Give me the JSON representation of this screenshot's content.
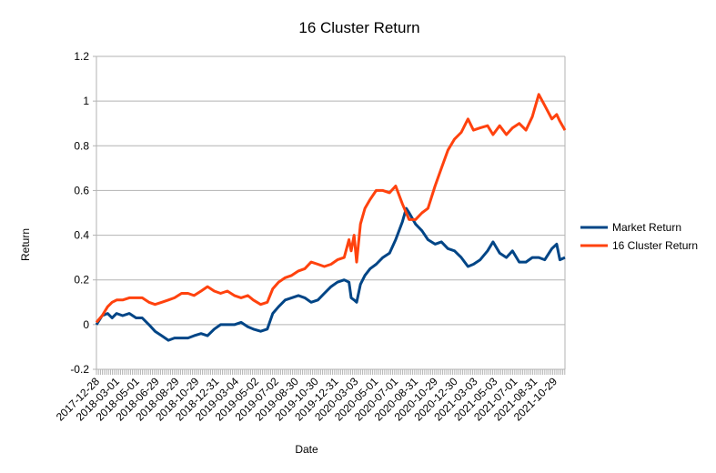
{
  "chart_data": {
    "type": "line",
    "title": "16 Cluster Return",
    "xlabel": "Date",
    "ylabel": "Return",
    "ylim": [
      -0.2,
      1.2
    ],
    "yticks": [
      -0.2,
      0,
      0.2,
      0.4,
      0.6,
      0.8,
      1,
      1.2
    ],
    "ytick_labels": [
      "-0.2",
      "0",
      "0.2",
      "0.4",
      "0.6",
      "0.8",
      "1",
      "1.2"
    ],
    "xlim": [
      "2017-12-28",
      "2021-12-31"
    ],
    "xtick_labels": [
      "2017-12-28",
      "2018-03-01",
      "2018-05-01",
      "2018-06-29",
      "2018-08-29",
      "2018-10-29",
      "2018-12-31",
      "2019-03-04",
      "2019-05-02",
      "2019-07-02",
      "2019-08-30",
      "2019-10-30",
      "2019-12-31",
      "2020-03-03",
      "2020-05-01",
      "2020-07-01",
      "2020-08-31",
      "2020-10-29",
      "2020-12-30",
      "2021-03-03",
      "2021-05-03",
      "2021-07-01",
      "2021-08-31",
      "2021-10-29"
    ],
    "grid": "horizontal",
    "legend_position": "right",
    "series": [
      {
        "name": "Market Return",
        "color": "#004586",
        "points": [
          [
            "2017-12-28",
            0.0
          ],
          [
            "2018-01-15",
            0.04
          ],
          [
            "2018-02-01",
            0.05
          ],
          [
            "2018-02-15",
            0.03
          ],
          [
            "2018-03-01",
            0.05
          ],
          [
            "2018-03-20",
            0.04
          ],
          [
            "2018-04-10",
            0.05
          ],
          [
            "2018-05-01",
            0.03
          ],
          [
            "2018-05-20",
            0.03
          ],
          [
            "2018-06-10",
            0.0
          ],
          [
            "2018-06-29",
            -0.03
          ],
          [
            "2018-07-20",
            -0.05
          ],
          [
            "2018-08-10",
            -0.07
          ],
          [
            "2018-08-29",
            -0.06
          ],
          [
            "2018-09-20",
            -0.06
          ],
          [
            "2018-10-10",
            -0.06
          ],
          [
            "2018-10-29",
            -0.05
          ],
          [
            "2018-11-20",
            -0.04
          ],
          [
            "2018-12-10",
            -0.05
          ],
          [
            "2018-12-31",
            -0.02
          ],
          [
            "2019-01-20",
            0.0
          ],
          [
            "2019-02-10",
            0.0
          ],
          [
            "2019-03-04",
            0.0
          ],
          [
            "2019-03-25",
            0.01
          ],
          [
            "2019-04-15",
            -0.01
          ],
          [
            "2019-05-02",
            -0.02
          ],
          [
            "2019-05-25",
            -0.03
          ],
          [
            "2019-06-15",
            -0.02
          ],
          [
            "2019-07-02",
            0.05
          ],
          [
            "2019-07-20",
            0.08
          ],
          [
            "2019-08-10",
            0.11
          ],
          [
            "2019-08-30",
            0.12
          ],
          [
            "2019-09-20",
            0.13
          ],
          [
            "2019-10-10",
            0.12
          ],
          [
            "2019-10-30",
            0.1
          ],
          [
            "2019-11-20",
            0.11
          ],
          [
            "2019-12-10",
            0.14
          ],
          [
            "2019-12-31",
            0.17
          ],
          [
            "2020-01-20",
            0.19
          ],
          [
            "2020-02-10",
            0.2
          ],
          [
            "2020-02-25",
            0.19
          ],
          [
            "2020-03-03",
            0.12
          ],
          [
            "2020-03-12",
            0.11
          ],
          [
            "2020-03-20",
            0.1
          ],
          [
            "2020-04-01",
            0.18
          ],
          [
            "2020-04-15",
            0.22
          ],
          [
            "2020-05-01",
            0.25
          ],
          [
            "2020-05-20",
            0.27
          ],
          [
            "2020-06-10",
            0.3
          ],
          [
            "2020-07-01",
            0.32
          ],
          [
            "2020-07-20",
            0.38
          ],
          [
            "2020-08-10",
            0.46
          ],
          [
            "2020-08-22",
            0.52
          ],
          [
            "2020-08-31",
            0.5
          ],
          [
            "2020-09-20",
            0.45
          ],
          [
            "2020-10-10",
            0.42
          ],
          [
            "2020-10-29",
            0.38
          ],
          [
            "2020-11-20",
            0.36
          ],
          [
            "2020-12-10",
            0.37
          ],
          [
            "2020-12-30",
            0.34
          ],
          [
            "2021-01-20",
            0.33
          ],
          [
            "2021-02-10",
            0.3
          ],
          [
            "2021-03-03",
            0.26
          ],
          [
            "2021-03-20",
            0.27
          ],
          [
            "2021-04-10",
            0.29
          ],
          [
            "2021-05-03",
            0.33
          ],
          [
            "2021-05-20",
            0.37
          ],
          [
            "2021-06-10",
            0.32
          ],
          [
            "2021-07-01",
            0.3
          ],
          [
            "2021-07-20",
            0.33
          ],
          [
            "2021-08-10",
            0.28
          ],
          [
            "2021-08-31",
            0.28
          ],
          [
            "2021-09-20",
            0.3
          ],
          [
            "2021-10-10",
            0.3
          ],
          [
            "2021-10-29",
            0.29
          ],
          [
            "2021-11-20",
            0.34
          ],
          [
            "2021-12-05",
            0.36
          ],
          [
            "2021-12-15",
            0.29
          ],
          [
            "2021-12-31",
            0.3
          ]
        ]
      },
      {
        "name": "16 Cluster Return",
        "color": "#ff420e",
        "points": [
          [
            "2017-12-28",
            0.01
          ],
          [
            "2018-01-15",
            0.04
          ],
          [
            "2018-02-01",
            0.08
          ],
          [
            "2018-02-15",
            0.1
          ],
          [
            "2018-03-01",
            0.11
          ],
          [
            "2018-03-20",
            0.11
          ],
          [
            "2018-04-10",
            0.12
          ],
          [
            "2018-05-01",
            0.12
          ],
          [
            "2018-05-20",
            0.12
          ],
          [
            "2018-06-10",
            0.1
          ],
          [
            "2018-06-29",
            0.09
          ],
          [
            "2018-07-20",
            0.1
          ],
          [
            "2018-08-10",
            0.11
          ],
          [
            "2018-08-29",
            0.12
          ],
          [
            "2018-09-20",
            0.14
          ],
          [
            "2018-10-10",
            0.14
          ],
          [
            "2018-10-29",
            0.13
          ],
          [
            "2018-11-20",
            0.15
          ],
          [
            "2018-12-10",
            0.17
          ],
          [
            "2018-12-31",
            0.15
          ],
          [
            "2019-01-20",
            0.14
          ],
          [
            "2019-02-10",
            0.15
          ],
          [
            "2019-03-04",
            0.13
          ],
          [
            "2019-03-25",
            0.12
          ],
          [
            "2019-04-15",
            0.13
          ],
          [
            "2019-05-02",
            0.11
          ],
          [
            "2019-05-25",
            0.09
          ],
          [
            "2019-06-15",
            0.1
          ],
          [
            "2019-07-02",
            0.16
          ],
          [
            "2019-07-20",
            0.19
          ],
          [
            "2019-08-10",
            0.21
          ],
          [
            "2019-08-30",
            0.22
          ],
          [
            "2019-09-20",
            0.24
          ],
          [
            "2019-10-10",
            0.25
          ],
          [
            "2019-10-30",
            0.28
          ],
          [
            "2019-11-20",
            0.27
          ],
          [
            "2019-12-10",
            0.26
          ],
          [
            "2019-12-31",
            0.27
          ],
          [
            "2020-01-20",
            0.29
          ],
          [
            "2020-02-10",
            0.3
          ],
          [
            "2020-02-25",
            0.38
          ],
          [
            "2020-03-03",
            0.33
          ],
          [
            "2020-03-12",
            0.4
          ],
          [
            "2020-03-20",
            0.28
          ],
          [
            "2020-04-01",
            0.45
          ],
          [
            "2020-04-15",
            0.52
          ],
          [
            "2020-05-01",
            0.56
          ],
          [
            "2020-05-20",
            0.6
          ],
          [
            "2020-06-10",
            0.6
          ],
          [
            "2020-07-01",
            0.59
          ],
          [
            "2020-07-20",
            0.62
          ],
          [
            "2020-08-10",
            0.54
          ],
          [
            "2020-08-22",
            0.5
          ],
          [
            "2020-08-31",
            0.47
          ],
          [
            "2020-09-20",
            0.47
          ],
          [
            "2020-10-10",
            0.5
          ],
          [
            "2020-10-29",
            0.52
          ],
          [
            "2020-11-20",
            0.62
          ],
          [
            "2020-12-10",
            0.7
          ],
          [
            "2020-12-30",
            0.78
          ],
          [
            "2021-01-20",
            0.83
          ],
          [
            "2021-02-10",
            0.86
          ],
          [
            "2021-03-03",
            0.92
          ],
          [
            "2021-03-20",
            0.87
          ],
          [
            "2021-04-10",
            0.88
          ],
          [
            "2021-05-03",
            0.89
          ],
          [
            "2021-05-20",
            0.85
          ],
          [
            "2021-06-10",
            0.89
          ],
          [
            "2021-07-01",
            0.85
          ],
          [
            "2021-07-20",
            0.88
          ],
          [
            "2021-08-10",
            0.9
          ],
          [
            "2021-08-31",
            0.87
          ],
          [
            "2021-09-20",
            0.93
          ],
          [
            "2021-10-10",
            1.03
          ],
          [
            "2021-10-29",
            0.98
          ],
          [
            "2021-11-20",
            0.92
          ],
          [
            "2021-12-05",
            0.94
          ],
          [
            "2021-12-15",
            0.91
          ],
          [
            "2021-12-31",
            0.87
          ]
        ]
      }
    ]
  }
}
